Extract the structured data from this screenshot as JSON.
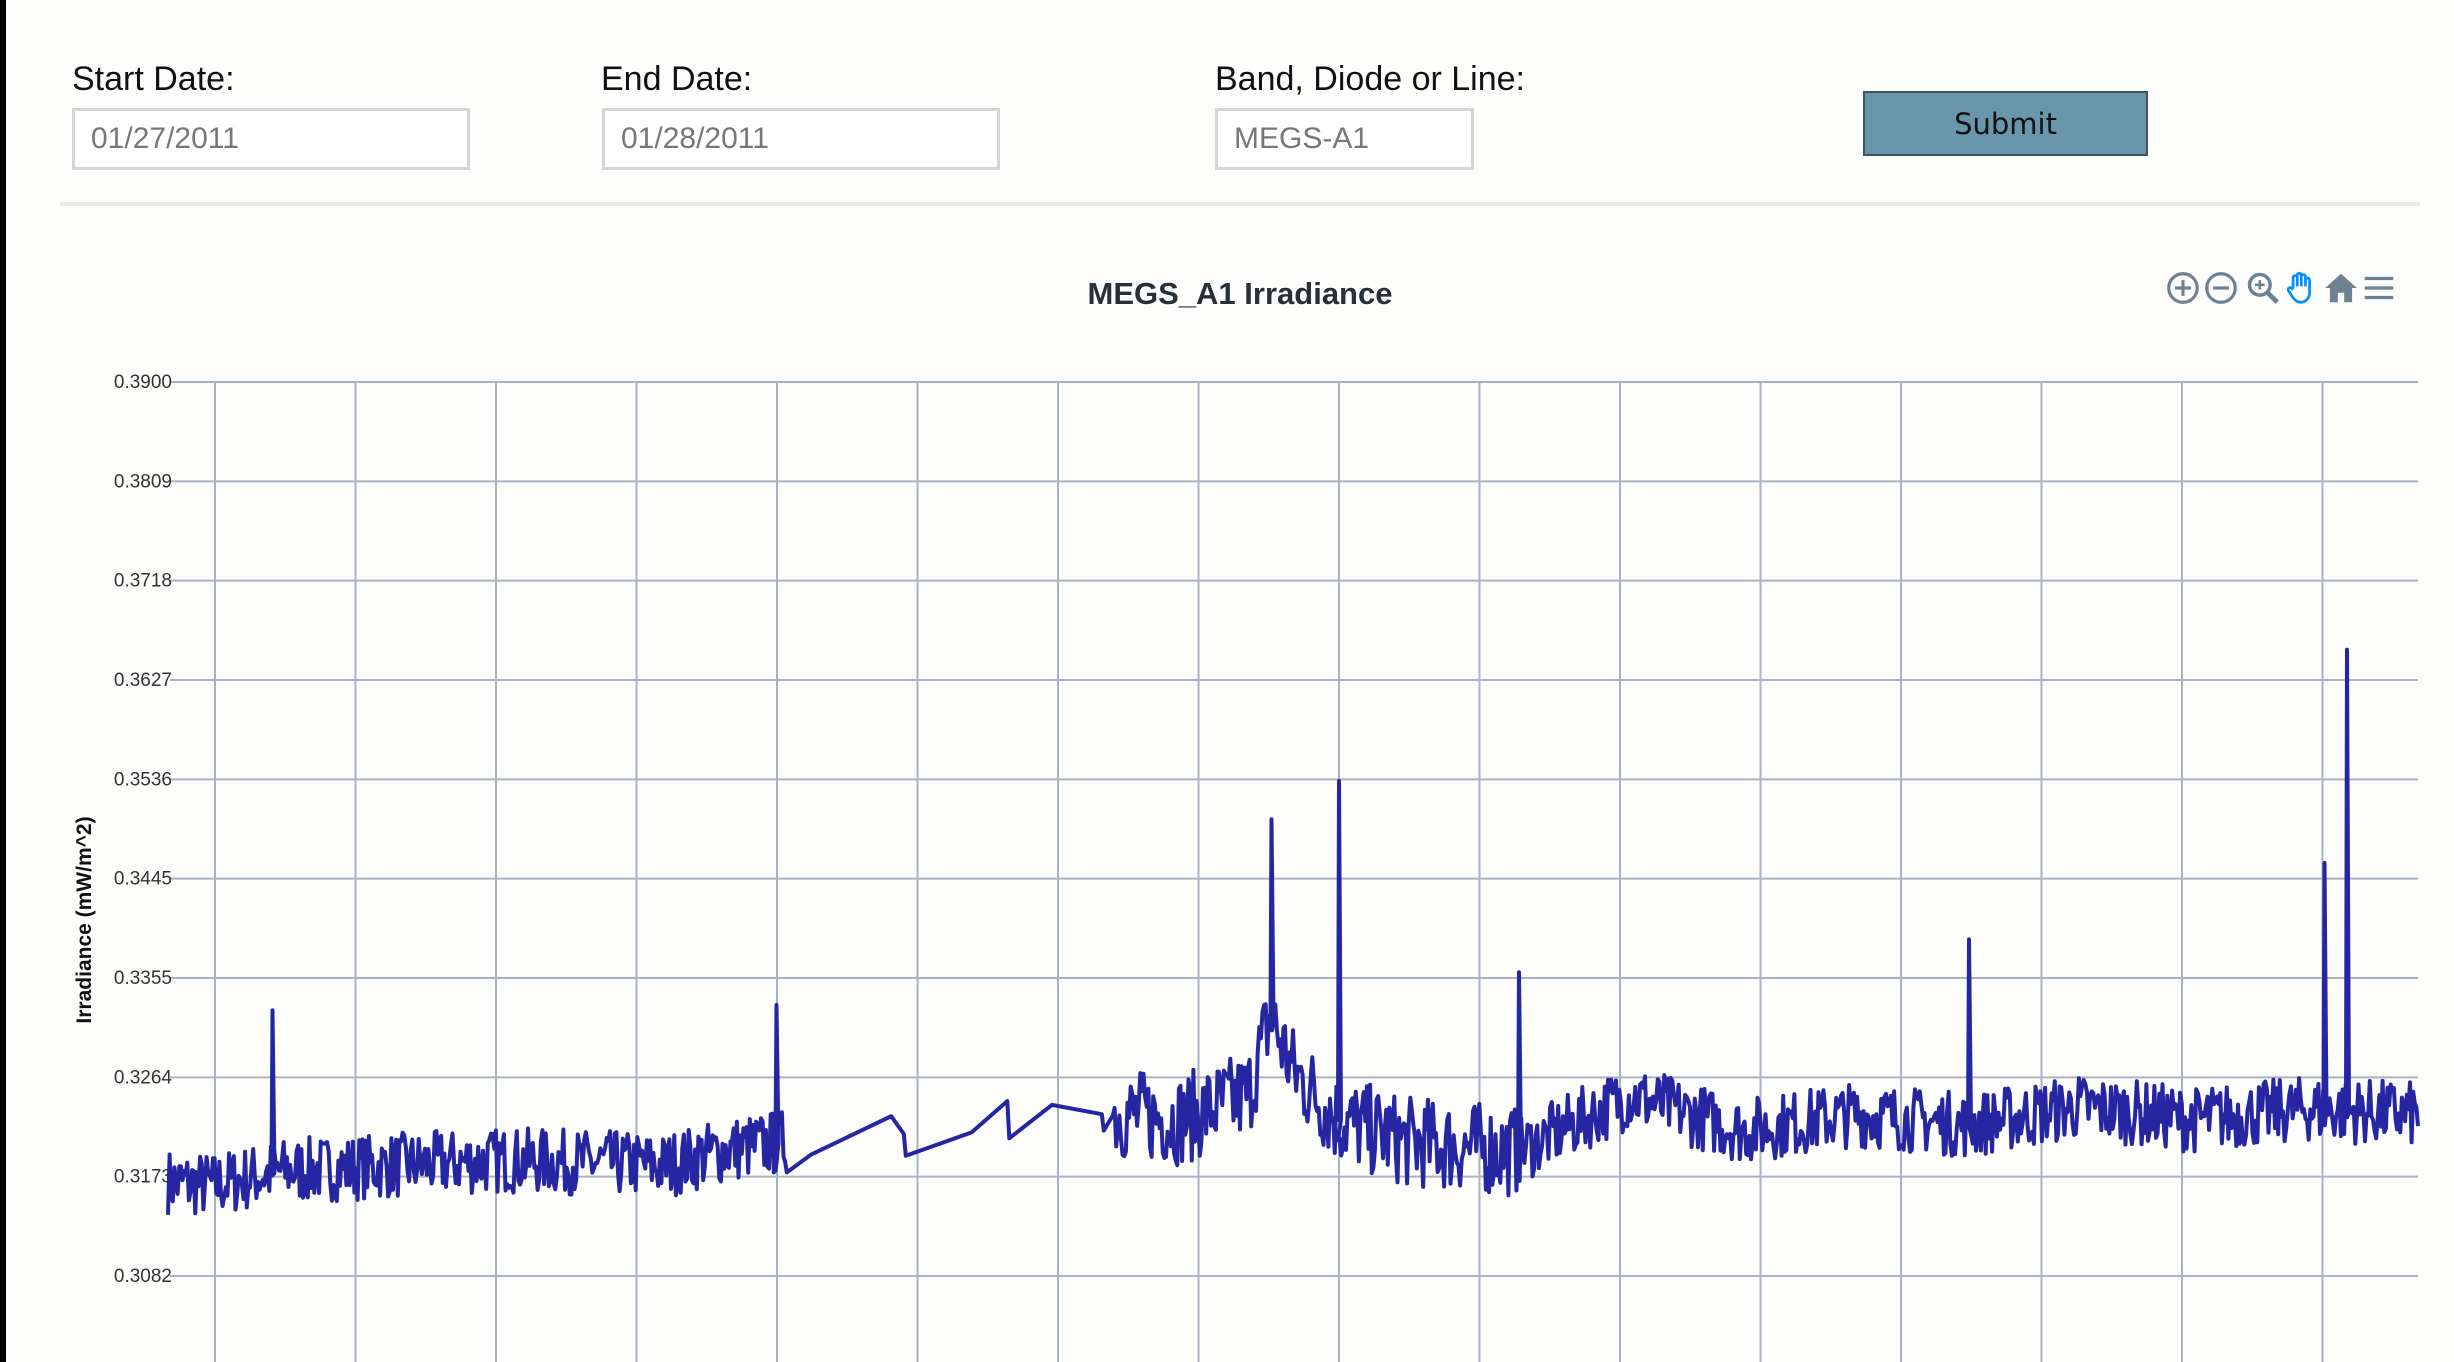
{
  "form": {
    "start_label": "Start Date:",
    "start_value": "01/27/2011",
    "end_label": "End Date:",
    "end_value": "01/28/2011",
    "band_label": "Band, Diode or Line:",
    "band_value": "MEGS-A1",
    "submit_label": "Submit"
  },
  "toolbar": {
    "icons": [
      "zoom-in-icon",
      "zoom-out-icon",
      "zoom-selection-icon",
      "pan-icon",
      "home-icon",
      "menu-icon"
    ],
    "active": "pan-icon",
    "icon_color": "#6e8192",
    "active_color": "#008ffb"
  },
  "chart_data": {
    "type": "line",
    "title": "MEGS_A1 Irradiance",
    "ylabel": "Irradiance (mW/m^2)",
    "xlabel": "",
    "ylim": [
      0.3082,
      0.39
    ],
    "yticks": [
      "0.3900",
      "0.3809",
      "0.3718",
      "0.3627",
      "0.3536",
      "0.3445",
      "0.3355",
      "0.3264",
      "0.3173",
      "0.3082"
    ],
    "grid": true,
    "legend": "none",
    "line_color": "#2626a3",
    "series": [
      {
        "x_fraction": [
          0.0,
          0.02,
          0.05,
          0.1,
          0.15,
          0.2,
          0.22,
          0.25,
          0.275,
          0.28,
          0.32,
          0.355,
          0.36,
          0.408,
          0.415,
          0.45,
          0.48,
          0.49,
          0.5,
          0.52,
          0.55,
          0.6,
          0.65,
          0.7,
          0.75,
          0.8,
          0.85,
          0.9,
          0.95,
          1.0
        ],
        "values": [
          0.3168,
          0.3165,
          0.3178,
          0.3183,
          0.3188,
          0.3185,
          0.3183,
          0.3198,
          0.3205,
          0.3187,
          0.3229,
          0.321,
          0.3218,
          0.3248,
          0.3232,
          0.3225,
          0.3247,
          0.332,
          0.327,
          0.3225,
          0.3205,
          0.3196,
          0.3247,
          0.3215,
          0.323,
          0.322,
          0.3237,
          0.3225,
          0.3235,
          0.323
        ]
      }
    ],
    "spikes": [
      {
        "x_fraction": 0.046,
        "value": 0.3325
      },
      {
        "x_fraction": 0.27,
        "value": 0.333
      },
      {
        "x_fraction": 0.49,
        "value": 0.35
      },
      {
        "x_fraction": 0.52,
        "value": 0.3535
      },
      {
        "x_fraction": 0.6,
        "value": 0.336
      },
      {
        "x_fraction": 0.8,
        "value": 0.339
      },
      {
        "x_fraction": 0.958,
        "value": 0.346
      },
      {
        "x_fraction": 0.968,
        "value": 0.3655
      }
    ]
  }
}
